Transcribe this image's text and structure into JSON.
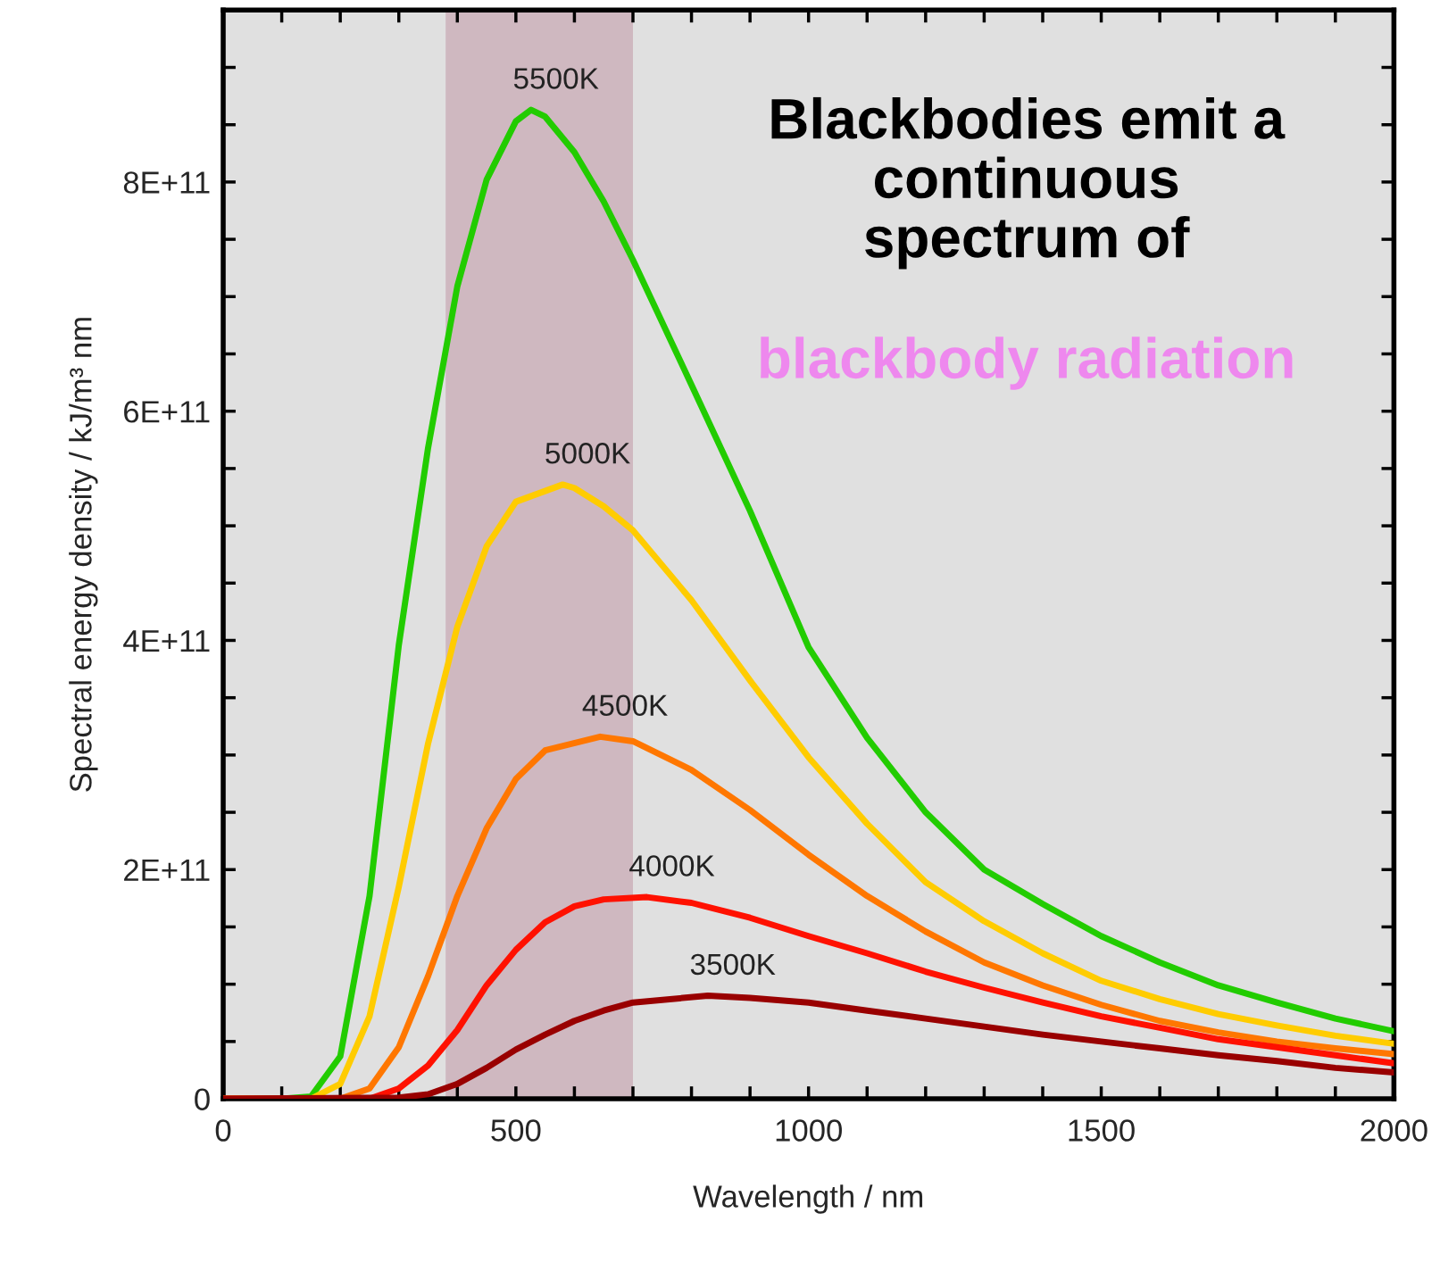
{
  "chart_data": {
    "type": "line",
    "title": "Blackbodies emit a\ncontinuous\nspectrum of",
    "subtitle": "blackbody radiation",
    "xlabel": "Wavelength / nm",
    "ylabel": "Spectral energy density / kJ/m³ nm",
    "series": [
      {
        "name": "5500K",
        "color": "#22cc00",
        "x": [
          0,
          100,
          150,
          200,
          250,
          300,
          350,
          400,
          450,
          500,
          526,
          550,
          600,
          650,
          700,
          800,
          900,
          1000,
          1100,
          1200,
          1300,
          1400,
          1500,
          1600,
          1700,
          1800,
          1900,
          2000
        ],
        "values": [
          0,
          0,
          2000000000.0,
          37000000000.0,
          177000000000.0,
          396000000000.0,
          568000000000.0,
          709000000000.0,
          802000000000.0,
          853000000000.0,
          863000000000.0,
          857000000000.0,
          826000000000.0,
          783000000000.0,
          732000000000.0,
          623000000000.0,
          513000000000.0,
          394000000000.0,
          315000000000.0,
          250000000000.0,
          200000000000.0,
          170000000000.0,
          142000000000.0,
          119000000000.0,
          99000000000.0,
          84000000000.0,
          70000000000.0,
          59000000000.0
        ]
      },
      {
        "name": "5000K",
        "color": "#ffcc00",
        "x": [
          0,
          150,
          200,
          250,
          300,
          350,
          400,
          450,
          500,
          580,
          600,
          650,
          700,
          800,
          900,
          1000,
          1100,
          1200,
          1300,
          1400,
          1500,
          1600,
          1700,
          1800,
          1900,
          2000
        ],
        "values": [
          0,
          0,
          13000000000.0,
          72000000000.0,
          185000000000.0,
          310000000000.0,
          412000000000.0,
          482000000000.0,
          521000000000.0,
          536000000000.0,
          533000000000.0,
          517000000000.0,
          496000000000.0,
          435000000000.0,
          365000000000.0,
          298000000000.0,
          240000000000.0,
          189000000000.0,
          155000000000.0,
          127000000000.0,
          103000000000.0,
          87000000000.0,
          74000000000.0,
          64000000000.0,
          55000000000.0,
          48000000000.0
        ]
      },
      {
        "name": "4500K",
        "color": "#ff7700",
        "x": [
          0,
          200,
          250,
          300,
          350,
          400,
          450,
          500,
          550,
          644,
          700,
          800,
          900,
          1000,
          1100,
          1200,
          1300,
          1400,
          1500,
          1600,
          1700,
          1800,
          1900,
          2000
        ],
        "values": [
          0,
          0,
          9000000000.0,
          45000000000.0,
          107000000000.0,
          177000000000.0,
          236000000000.0,
          279000000000.0,
          304000000000.0,
          316000000000.0,
          312000000000.0,
          287000000000.0,
          252000000000.0,
          213000000000.0,
          177000000000.0,
          146000000000.0,
          119000000000.0,
          99000000000.0,
          82000000000.0,
          68000000000.0,
          58000000000.0,
          50000000000.0,
          44000000000.0,
          39000000000.0
        ]
      },
      {
        "name": "4000K",
        "color": "#ff1100",
        "x": [
          0,
          250,
          300,
          350,
          400,
          450,
          500,
          550,
          600,
          650,
          724,
          800,
          900,
          1000,
          1100,
          1200,
          1300,
          1400,
          1500,
          1600,
          1700,
          1800,
          1900,
          2000
        ],
        "values": [
          0,
          0,
          9000000000.0,
          29000000000.0,
          60000000000.0,
          99000000000.0,
          130000000000.0,
          154000000000.0,
          168000000000.0,
          174000000000.0,
          176000000000.0,
          171000000000.0,
          158000000000.0,
          142000000000.0,
          127000000000.0,
          111000000000.0,
          97000000000.0,
          84000000000.0,
          72000000000.0,
          62000000000.0,
          52000000000.0,
          45000000000.0,
          38000000000.0,
          31000000000.0
        ]
      },
      {
        "name": "3500K",
        "color": "#990000",
        "x": [
          0,
          300,
          350,
          400,
          450,
          500,
          550,
          600,
          650,
          700,
          828,
          900,
          1000,
          1100,
          1200,
          1300,
          1400,
          1500,
          1600,
          1700,
          1800,
          1900,
          2000
        ],
        "values": [
          0,
          1000000000.0,
          4000000000.0,
          13000000000.0,
          27000000000.0,
          43000000000.0,
          56000000000.0,
          68000000000.0,
          77000000000.0,
          84000000000.0,
          90000000000.0,
          88000000000.0,
          84000000000.0,
          77000000000.0,
          70000000000.0,
          63000000000.0,
          56000000000.0,
          50000000000.0,
          44000000000.0,
          38000000000.0,
          33000000000.0,
          27000000000.0,
          23000000000.0
        ]
      }
    ],
    "bands": [
      {
        "axis": "x",
        "from": 380,
        "to": 700,
        "color": "#cfb8c0"
      }
    ],
    "xlim": [
      0,
      2000
    ],
    "ylim": [
      0,
      950000000000.0
    ],
    "xticks": [
      0,
      {
        "value": 100,
        "label": null
      },
      {
        "value": 200,
        "label": null
      },
      {
        "value": 300,
        "label": null
      },
      {
        "value": 400,
        "label": null
      },
      500,
      {
        "value": 600,
        "label": null
      },
      {
        "value": 700,
        "label": null
      },
      {
        "value": 800,
        "label": null
      },
      {
        "value": 900,
        "label": null
      },
      1000,
      {
        "value": 1100,
        "label": null
      },
      {
        "value": 1200,
        "label": null
      },
      {
        "value": 1300,
        "label": null
      },
      {
        "value": 1400,
        "label": null
      },
      1500,
      {
        "value": 1600,
        "label": null
      },
      {
        "value": 1700,
        "label": null
      },
      {
        "value": 1800,
        "label": null
      },
      {
        "value": 1900,
        "label": null
      },
      2000
    ],
    "yticks": [
      0,
      {
        "value": 50000000000.0,
        "label": null
      },
      {
        "value": 100000000000.0,
        "label": null
      },
      {
        "value": 150000000000.0,
        "label": null
      },
      {
        "value": 200000000000.0,
        "label": "2E+11"
      },
      {
        "value": 250000000000.0,
        "label": null
      },
      {
        "value": 300000000000.0,
        "label": null
      },
      {
        "value": 350000000000.0,
        "label": null
      },
      {
        "value": 400000000000.0,
        "label": "4E+11"
      },
      {
        "value": 450000000000.0,
        "label": null
      },
      {
        "value": 500000000000.0,
        "label": null
      },
      {
        "value": 550000000000.0,
        "label": null
      },
      {
        "value": 600000000000.0,
        "label": "6E+11"
      },
      {
        "value": 650000000000.0,
        "label": null
      },
      {
        "value": 700000000000.0,
        "label": null
      },
      {
        "value": 750000000000.0,
        "label": null
      },
      {
        "value": 800000000000.0,
        "label": "8E+11"
      },
      {
        "value": 850000000000.0,
        "label": null
      },
      {
        "value": 900000000000.0,
        "label": null
      }
    ],
    "grid": false,
    "legend": false,
    "marker": "none",
    "line_style": "solid"
  }
}
